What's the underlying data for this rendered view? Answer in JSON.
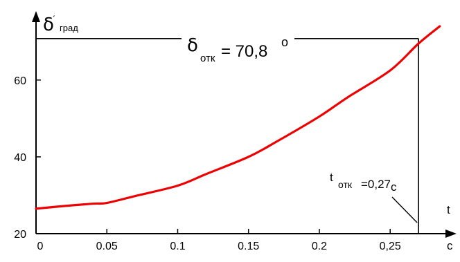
{
  "chart_data": {
    "type": "line",
    "title": "",
    "ylabel": {
      "symbol": "δ",
      "prime": "´",
      "unit": "град"
    },
    "xlabel": {
      "symbol": "t",
      "unit": "с"
    },
    "xlim": [
      0,
      0.29
    ],
    "ylim": [
      20,
      74
    ],
    "x_ticks": [
      0,
      0.05,
      0.1,
      0.15,
      0.2,
      0.25
    ],
    "x_tick_labels": [
      "0",
      "0.05",
      "0.1",
      "0.15",
      "0.2",
      "0,25"
    ],
    "y_ticks": [
      20,
      40,
      60
    ],
    "y_tick_labels": [
      "20",
      "40",
      "60"
    ],
    "grid": false,
    "series": [
      {
        "color": "#ee0000",
        "x": [
          0,
          0.02,
          0.04,
          0.05,
          0.07,
          0.1,
          0.12,
          0.15,
          0.17,
          0.2,
          0.22,
          0.25,
          0.27,
          0.285
        ],
        "y": [
          26.5,
          27.2,
          27.8,
          28.0,
          29.8,
          32.5,
          35.5,
          40.0,
          44.0,
          50.5,
          55.5,
          62.5,
          69.5,
          74.0
        ]
      }
    ],
    "annotations": {
      "delta_open": {
        "symbol": "δ",
        "subscript": "отк",
        "equals": "= 70,8",
        "degree": "o",
        "value": 70.8
      },
      "t_open": {
        "symbol": "t",
        "subscript": "отк",
        "text": "=0,27",
        "unit": "с",
        "value": 0.27
      }
    }
  }
}
